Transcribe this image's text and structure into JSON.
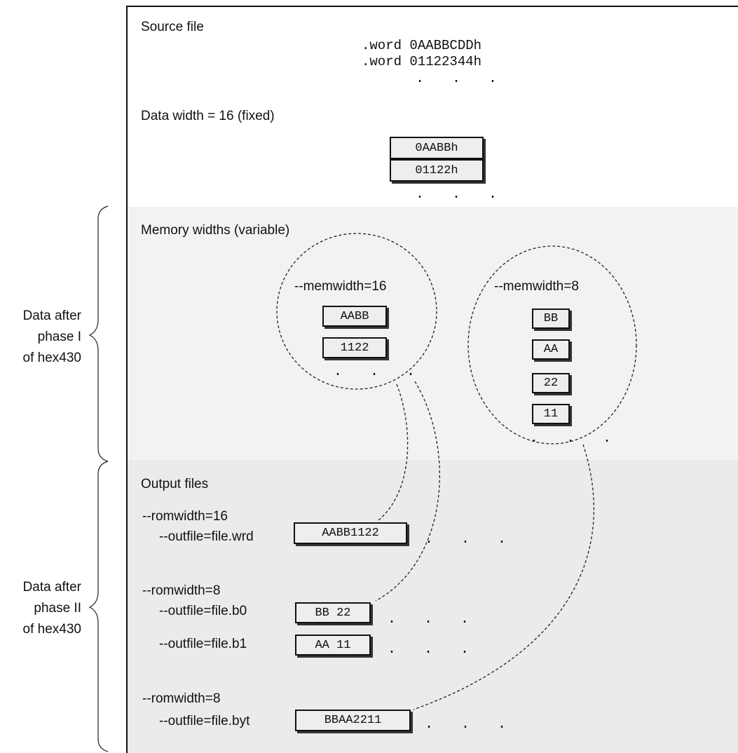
{
  "source_panel": {
    "title": "Source file",
    "lines": [
      ".word 0AABBCDDh",
      ".word 01122344h"
    ],
    "ellipsis": ". . ."
  },
  "data_width_panel": {
    "title": "Data width = 16 (fixed)",
    "cells": [
      "0AABBh",
      "01122h"
    ],
    "ellipsis": ". . ."
  },
  "memory_panel": {
    "title": "Memory widths (variable)",
    "group16": {
      "label": "--memwidth=16",
      "cells": [
        "AABB",
        "1122"
      ],
      "ellipsis": ". . ."
    },
    "group8": {
      "label": "--memwidth=8",
      "cells": [
        "BB",
        "AA",
        "22",
        "11"
      ],
      "ellipsis": ". . ."
    }
  },
  "output_panel": {
    "title": "Output files",
    "groups": [
      {
        "romwidth": "--romwidth=16",
        "files": [
          {
            "outfile": "--outfile=file.wrd",
            "content": "AABB1122",
            "ellipsis": ". . ."
          }
        ]
      },
      {
        "romwidth": "--romwidth=8",
        "files": [
          {
            "outfile": "--outfile=file.b0",
            "content": "BB 22",
            "ellipsis": ". . ."
          },
          {
            "outfile": "--outfile=file.b1",
            "content": "AA 11",
            "ellipsis": ". . ."
          }
        ]
      },
      {
        "romwidth": "--romwidth=8",
        "files": [
          {
            "outfile": "--outfile=file.byt",
            "content": "BBAA2211",
            "ellipsis": ". . ."
          }
        ]
      }
    ]
  },
  "side_labels": {
    "phase1": [
      "Data after",
      "phase I",
      "of hex430"
    ],
    "phase2": [
      "Data after",
      "phase II",
      "of hex430"
    ]
  }
}
